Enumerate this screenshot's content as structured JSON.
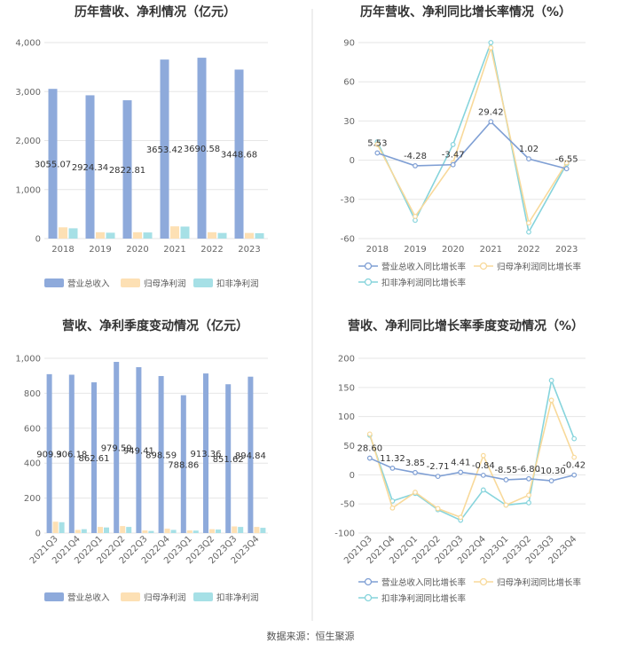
{
  "source": "数据来源：恒生聚源",
  "colors": {
    "revenue": "#8eaadb",
    "net_profit": "#fde0b4",
    "deducted_profit": "#a6e0e6",
    "revenue_line": "#7f9fd4",
    "net_line": "#f8d99a",
    "deducted_line": "#86d4dc",
    "grid": "#e6e6e6",
    "divider": "#dddddd"
  },
  "chart_data": [
    {
      "id": "annual-bar",
      "type": "bar",
      "title": "历年营收、净利情况（亿元）",
      "categories": [
        "2018",
        "2019",
        "2020",
        "2021",
        "2022",
        "2023"
      ],
      "yticks": [
        "0",
        "1,000",
        "2,000",
        "3,000",
        "4,000"
      ],
      "ylim": [
        0,
        4000
      ],
      "series": [
        {
          "name": "营业总收入",
          "values": [
            3055.07,
            2924.34,
            2822.81,
            3653.42,
            3690.58,
            3448.68
          ],
          "labels": [
            "3055.07",
            "2924.34",
            "2822.81",
            "3653.42",
            "3690.58",
            "3448.68"
          ]
        },
        {
          "name": "归母净利润",
          "values": [
            230,
            130,
            130,
            250,
            130,
            115
          ]
        },
        {
          "name": "扣非净利润",
          "values": [
            210,
            120,
            125,
            245,
            115,
            110
          ]
        }
      ],
      "legend": "bottom"
    },
    {
      "id": "annual-line",
      "type": "line",
      "title": "历年营收、净利同比增长率情况（%）",
      "categories": [
        "2018",
        "2019",
        "2020",
        "2021",
        "2022",
        "2023"
      ],
      "yticks": [
        "-60",
        "-30",
        "0",
        "30",
        "60",
        "90"
      ],
      "ylim": [
        -60,
        90
      ],
      "series": [
        {
          "name": "营业总收入同比增长率",
          "values": [
            5.53,
            -4.28,
            -3.47,
            29.42,
            1.02,
            -6.55
          ],
          "labels": [
            "5.53",
            "-4.28",
            "-3.47",
            "29.42",
            "1.02",
            "-6.55"
          ]
        },
        {
          "name": "归母净利润同比增长率",
          "values": [
            12,
            -43,
            -2,
            86,
            -48,
            -2
          ]
        },
        {
          "name": "扣非净利润同比增长率",
          "values": [
            14,
            -46,
            12,
            90,
            -55,
            -3
          ]
        }
      ],
      "legend": "bottom"
    },
    {
      "id": "quarter-bar",
      "type": "bar",
      "title": "营收、净利季度变动情况（亿元）",
      "categories": [
        "2021Q3",
        "2021Q4",
        "2022Q1",
        "2022Q2",
        "2022Q3",
        "2022Q4",
        "2023Q1",
        "2023Q2",
        "2023Q3",
        "2023Q4"
      ],
      "yticks": [
        "0",
        "200",
        "400",
        "600",
        "800",
        "1,000"
      ],
      "ylim": [
        0,
        1000
      ],
      "series": [
        {
          "name": "营业总收入",
          "values": [
            909.3,
            906.18,
            862.61,
            979.59,
            949.41,
            898.59,
            788.86,
            913.36,
            851.62,
            894.84
          ],
          "labels": [
            "909.3",
            "906.18",
            "862.61",
            "979.59",
            "949.41",
            "898.59",
            "788.86",
            "913.36",
            "851.62",
            "894.84"
          ]
        },
        {
          "name": "归母净利润",
          "values": [
            65,
            18,
            35,
            40,
            15,
            25,
            15,
            22,
            38,
            35
          ]
        },
        {
          "name": "扣非净利润",
          "values": [
            62,
            22,
            32,
            35,
            12,
            18,
            14,
            20,
            35,
            30
          ]
        }
      ],
      "legend": "bottom"
    },
    {
      "id": "quarter-line",
      "type": "line",
      "title": "营收、净利同比增长率季度变动情况（%）",
      "categories": [
        "2021Q3",
        "2021Q4",
        "2022Q1",
        "2022Q2",
        "2022Q3",
        "2022Q4",
        "2023Q1",
        "2023Q2",
        "2023Q3",
        "2023Q4"
      ],
      "yticks": [
        "-100",
        "-50",
        "0",
        "50",
        "100",
        "150",
        "200"
      ],
      "ylim": [
        -100,
        200
      ],
      "series": [
        {
          "name": "营业总收入同比增长率",
          "values": [
            28.6,
            11.32,
            3.85,
            -2.71,
            4.41,
            -0.84,
            -8.55,
            -6.8,
            -10.3,
            -0.42
          ],
          "labels": [
            "28.60",
            "11.32",
            "3.85",
            "-2.71",
            "4.41",
            "-0.84",
            "-8.55",
            "-6.80",
            "-10.30",
            "-0.42"
          ]
        },
        {
          "name": "归母净利润同比增长率",
          "values": [
            70,
            -57,
            -30,
            -58,
            -73,
            33,
            -52,
            -35,
            128,
            30
          ]
        },
        {
          "name": "扣非净利润同比增长率",
          "values": [
            68,
            -45,
            -32,
            -60,
            -78,
            -26,
            -52,
            -48,
            162,
            62
          ]
        }
      ],
      "legend": "bottom"
    }
  ]
}
